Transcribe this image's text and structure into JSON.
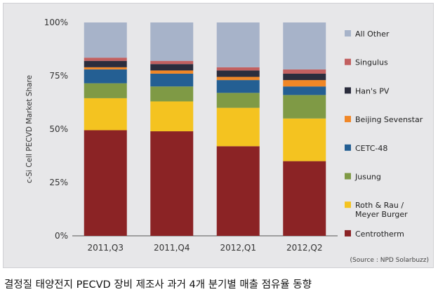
{
  "chart_data": {
    "type": "bar",
    "stacked": true,
    "categories": [
      "2011,Q3",
      "2011,Q4",
      "2012,Q1",
      "2012,Q2"
    ],
    "ylabel": "c-Si Cell PECVD Market Share",
    "ylim": [
      0,
      100
    ],
    "yticks": [
      "0%",
      "25%",
      "50%",
      "75%",
      "100%"
    ],
    "legend_position": "right",
    "series": [
      {
        "name": "Centrotherm",
        "color": "#8b2325",
        "values": [
          49.5,
          49,
          42,
          35
        ]
      },
      {
        "name": "Roth & Rau / Meyer Burger",
        "color": "#f4c320",
        "values": [
          15,
          14,
          18,
          20
        ]
      },
      {
        "name": "Jusung",
        "color": "#7f9a45",
        "values": [
          7,
          7,
          7,
          11
        ]
      },
      {
        "name": "CETC-48",
        "color": "#245f93",
        "values": [
          6.5,
          6,
          6,
          4
        ]
      },
      {
        "name": "Beijing Sevenstar",
        "color": "#f08727",
        "values": [
          1,
          1.5,
          1.5,
          3
        ]
      },
      {
        "name": "Han's PV",
        "color": "#2b2d3d",
        "values": [
          3,
          3,
          3,
          3
        ]
      },
      {
        "name": "Singulus",
        "color": "#c26060",
        "values": [
          1.5,
          1.5,
          1.5,
          2
        ]
      },
      {
        "name": "All Other",
        "color": "#a7b3c9",
        "values": [
          16.5,
          18,
          21,
          22
        ]
      }
    ]
  },
  "source_note": "(Source : NPD Solarbuzz)",
  "caption": "결정질 태양전지 PECVD 장비 제조사 과거 4개 분기별 매출 점유율 동향"
}
